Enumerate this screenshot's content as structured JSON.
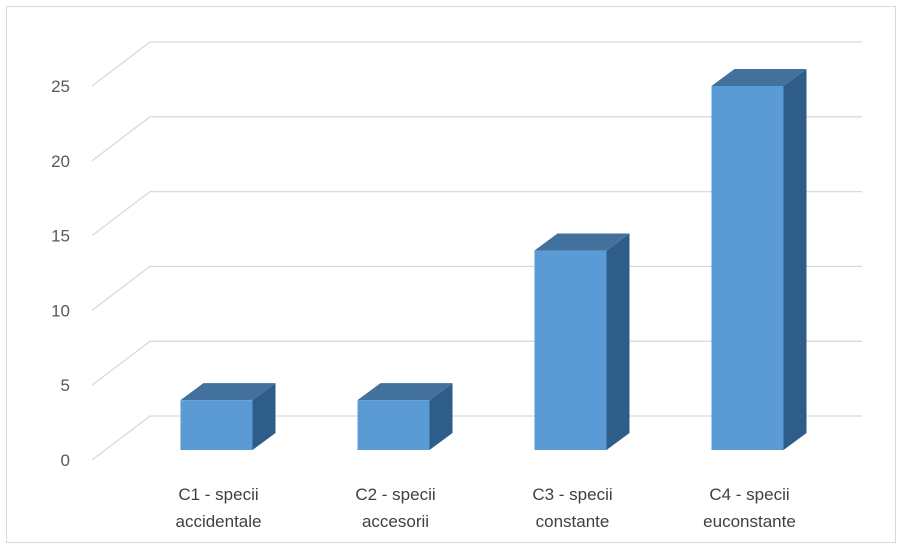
{
  "chart_data": {
    "type": "bar",
    "style": "3d-column",
    "categories": [
      [
        "C1 - specii",
        "accidentale"
      ],
      [
        "C2 - specii",
        "accesorii"
      ],
      [
        "C3 - specii",
        "constante"
      ],
      [
        "C4 - specii",
        "euconstante"
      ]
    ],
    "values": [
      4,
      4,
      14,
      25
    ],
    "ylim": [
      0,
      25
    ],
    "yticks": [
      0,
      5,
      10,
      15,
      20,
      25
    ],
    "grid": true,
    "legend": "none",
    "colors": {
      "front": "#5b9bd5",
      "top": "#41719c",
      "side": "#2e5d8a",
      "grid": "#d9d9d9"
    }
  }
}
